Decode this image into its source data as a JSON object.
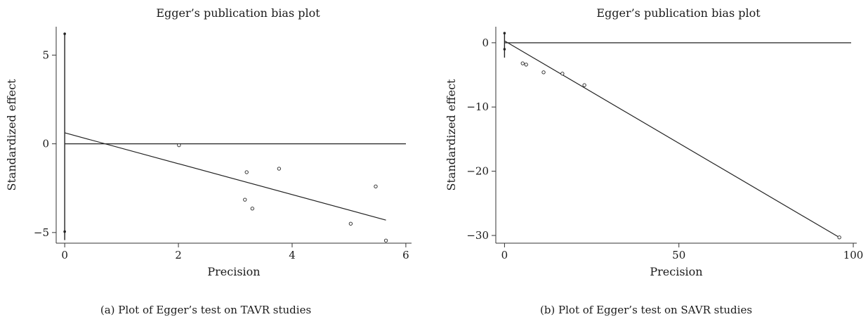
{
  "chart_data": [
    {
      "type": "scatter",
      "title": "Egger’s publication bias plot",
      "xlabel": "Precision",
      "ylabel": "Standardized effect",
      "caption": "(a) Plot of Egger’s test on TAVR studies",
      "xlim": [
        -0.15,
        6.1
      ],
      "ylim": [
        -5.6,
        6.6
      ],
      "xticks": [
        0,
        2,
        4,
        6
      ],
      "yticks": [
        -5,
        0,
        5
      ],
      "grid": false,
      "points": [
        {
          "x": 2.01,
          "y": -0.08
        },
        {
          "x": 3.2,
          "y": -1.6
        },
        {
          "x": 3.77,
          "y": -1.4
        },
        {
          "x": 3.17,
          "y": -3.15
        },
        {
          "x": 3.3,
          "y": -3.65
        },
        {
          "x": 5.47,
          "y": -2.4
        },
        {
          "x": 5.03,
          "y": -4.5
        },
        {
          "x": 5.65,
          "y": -5.45
        }
      ],
      "regression_line": {
        "x": [
          0,
          5.65
        ],
        "y": [
          0.62,
          -4.3
        ]
      },
      "reference_line_y": 0,
      "intercept_ci": {
        "x": 0,
        "lower": -4.95,
        "upper": 6.2
      }
    },
    {
      "type": "scatter",
      "title": "Egger’s publication bias plot",
      "xlabel": "Precision",
      "ylabel": "Standardized effect",
      "caption": "(b) Plot of Egger’s test on SAVR studies",
      "xlim": [
        -2.5,
        101
      ],
      "ylim": [
        -31.2,
        2.5
      ],
      "xticks": [
        0,
        50,
        100
      ],
      "yticks": [
        -30,
        -20,
        -10,
        0
      ],
      "grid": false,
      "points": [
        {
          "x": 5.2,
          "y": -3.2
        },
        {
          "x": 6.2,
          "y": -3.4
        },
        {
          "x": 11.2,
          "y": -4.6
        },
        {
          "x": 16.6,
          "y": -4.8
        },
        {
          "x": 22.9,
          "y": -6.6
        },
        {
          "x": 96.0,
          "y": -30.3
        }
      ],
      "regression_line": {
        "x": [
          0,
          96.0
        ],
        "y": [
          0.3,
          -30.3
        ]
      },
      "reference_line_y": 0,
      "intercept_ci": {
        "x": 0,
        "lower": -1.0,
        "upper": 1.5
      }
    }
  ]
}
